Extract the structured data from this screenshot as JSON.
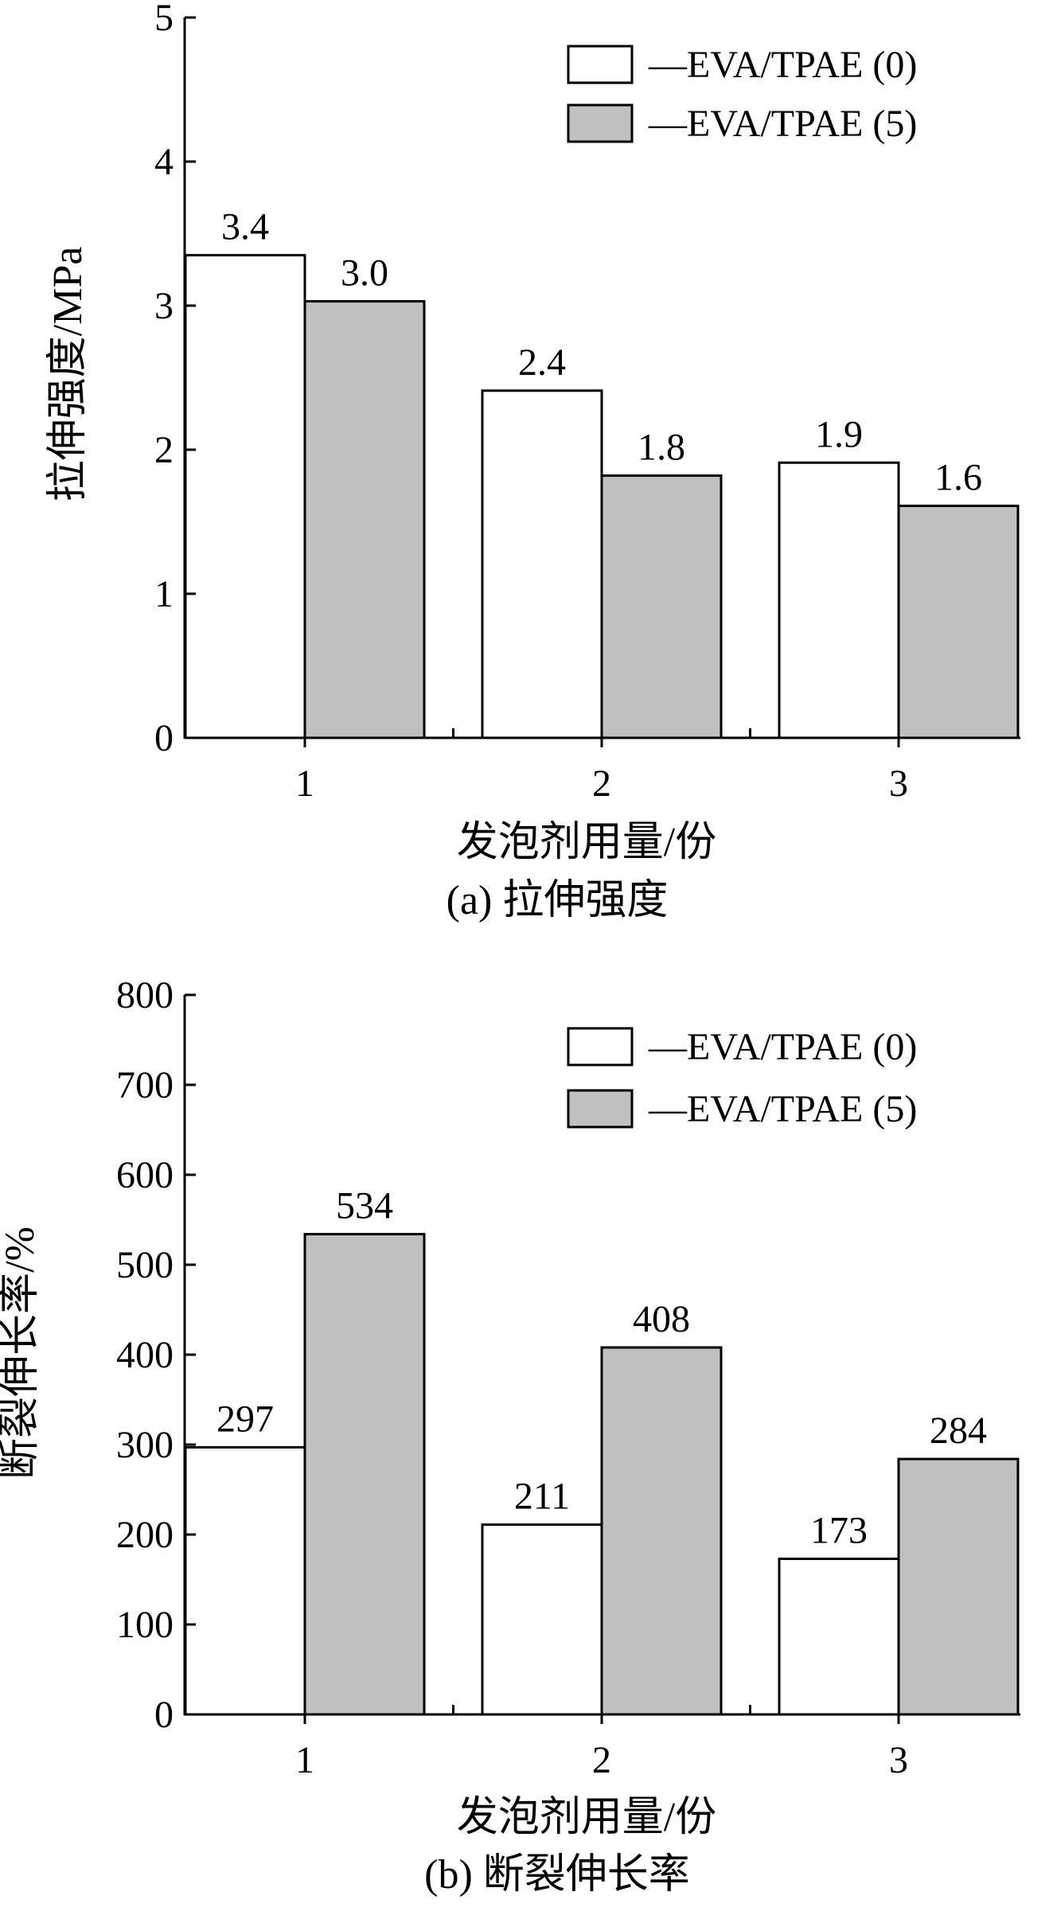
{
  "figure": {
    "panels": [
      {
        "id": "a",
        "caption": "(a) 拉伸强度"
      },
      {
        "id": "b",
        "caption": "(b) 断裂伸长率"
      }
    ]
  },
  "chart_data": [
    {
      "type": "bar",
      "title": "",
      "xlabel": "发泡剂用量/份",
      "ylabel": "拉伸强度/MPa",
      "categories": [
        "1",
        "2",
        "3"
      ],
      "ylim": [
        0,
        5
      ],
      "yticks": [
        0,
        1,
        2,
        3,
        4,
        5
      ],
      "grid": false,
      "legend_position": "top-right",
      "series": [
        {
          "name": "—EVA/TPAE (0)",
          "values": [
            3.35,
            2.41,
            1.91
          ],
          "labels": [
            "3.4",
            "2.4",
            "1.9"
          ],
          "color": "#ffffff"
        },
        {
          "name": "—EVA/TPAE (5)",
          "values": [
            3.03,
            1.82,
            1.61
          ],
          "labels": [
            "3.0",
            "1.8",
            "1.6"
          ],
          "color": "#c0c0c0"
        }
      ]
    },
    {
      "type": "bar",
      "title": "",
      "xlabel": "发泡剂用量/份",
      "ylabel": "断裂伸长率/%",
      "categories": [
        "1",
        "2",
        "3"
      ],
      "ylim": [
        0,
        800
      ],
      "yticks": [
        0,
        100,
        200,
        300,
        400,
        500,
        600,
        700,
        800
      ],
      "grid": false,
      "legend_position": "top-right",
      "series": [
        {
          "name": "—EVA/TPAE (0)",
          "values": [
            297,
            211,
            173
          ],
          "labels": [
            "297",
            "211",
            "173"
          ],
          "color": "#ffffff"
        },
        {
          "name": "—EVA/TPAE (5)",
          "values": [
            534,
            408,
            284
          ],
          "labels": [
            "534",
            "408",
            "284"
          ],
          "color": "#c0c0c0"
        }
      ]
    }
  ]
}
